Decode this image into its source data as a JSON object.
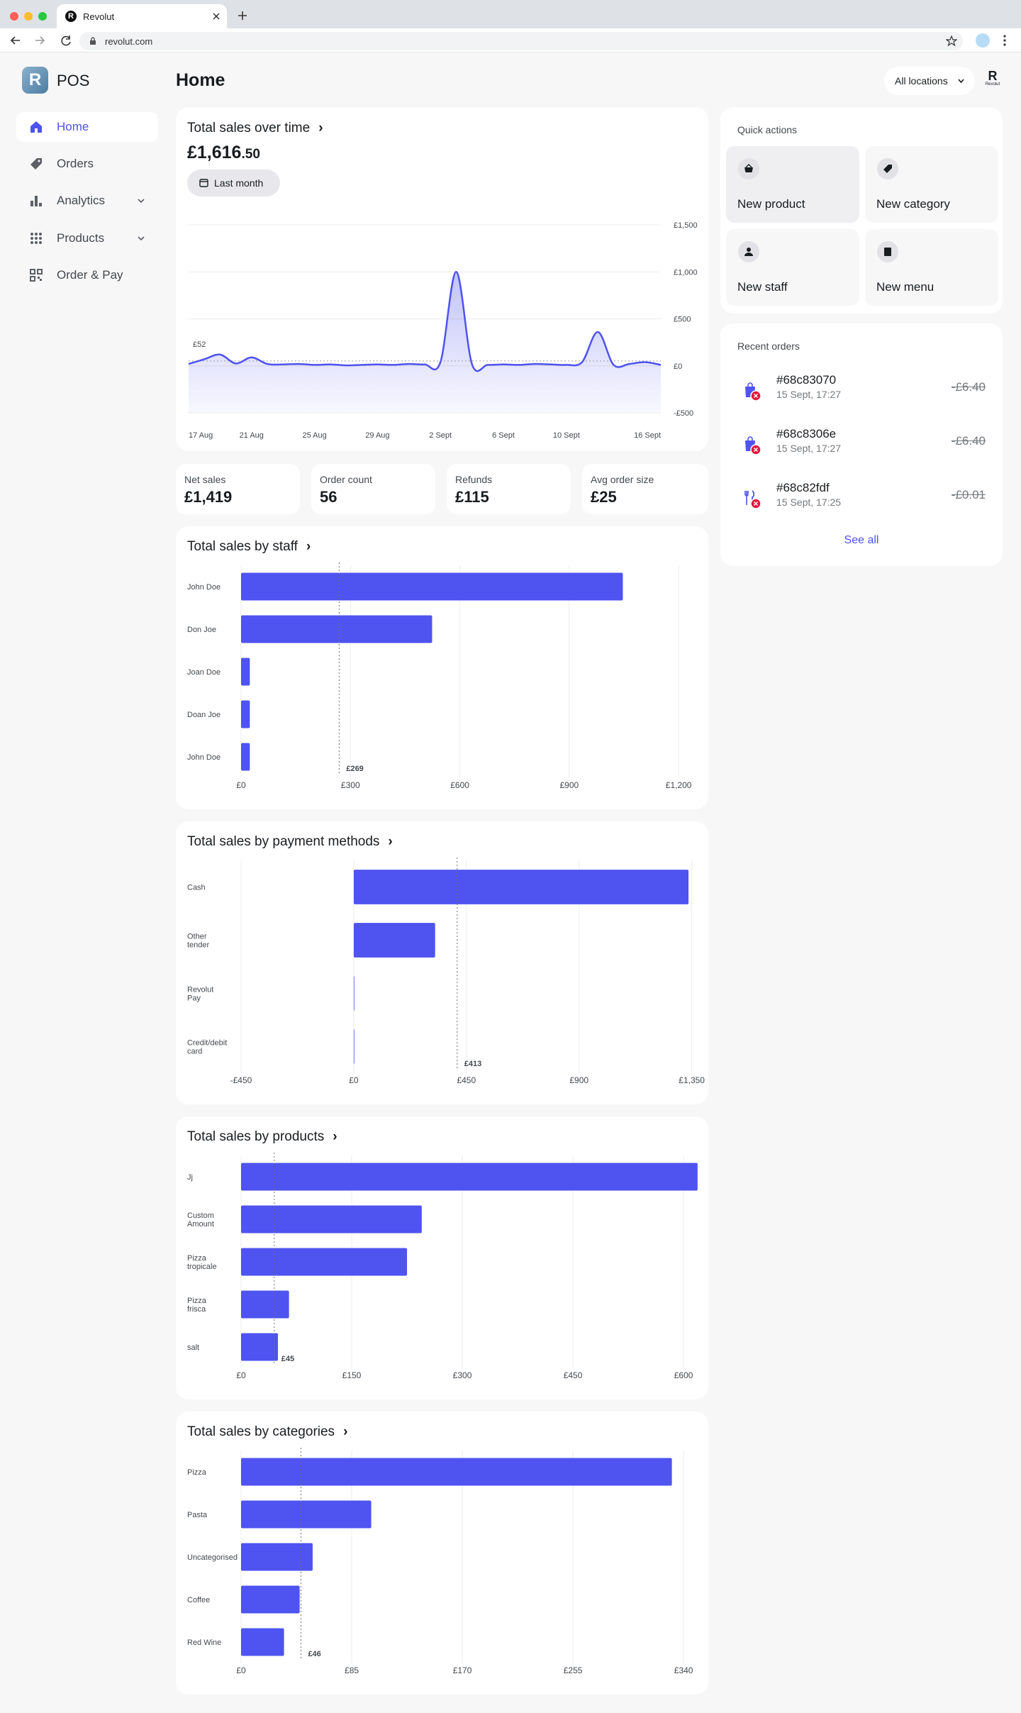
{
  "browser": {
    "tab_title": "Revolut",
    "url": "revolut.com"
  },
  "sidebar": {
    "logo": "R",
    "brand": "POS",
    "nav": [
      "Home",
      "Orders",
      "Analytics",
      "Products",
      "Order & Pay"
    ]
  },
  "header": {
    "title": "Home",
    "location_filter": "All locations",
    "logo_letter": "R",
    "logo_caption": "Revolut"
  },
  "sales_over_time": {
    "amount": "£1,616",
    "amount_decimals": ".50",
    "period": "Last month"
  },
  "stats": [
    {
      "label": "Net sales",
      "value": "£1,419"
    },
    {
      "label": "Order count",
      "value": "56"
    },
    {
      "label": "Refunds",
      "value": "£115"
    },
    {
      "label": "Avg order size",
      "value": "£25"
    }
  ],
  "quick_actions": {
    "title": "Quick actions",
    "actions": [
      "New product",
      "New category",
      "New staff",
      "New menu"
    ]
  },
  "recent_orders": {
    "title": "Recent orders",
    "orders": [
      {
        "id": "#68c83070",
        "time": "15 Sept, 17:27",
        "amount": "-£6.40"
      },
      {
        "id": "#68c8306e",
        "time": "15 Sept, 17:27",
        "amount": "-£6.40"
      },
      {
        "id": "#68c82fdf",
        "time": "15 Sept, 17:25",
        "amount": "-£0.01"
      }
    ],
    "see_all": "See all"
  },
  "chart_data": [
    {
      "type": "line",
      "title": "Total sales over time",
      "categories": [
        "17 Aug",
        null,
        null,
        null,
        "21 Aug",
        null,
        null,
        null,
        "25 Aug",
        null,
        null,
        null,
        "29 Aug",
        null,
        null,
        null,
        "2 Sept",
        null,
        null,
        null,
        "6 Sept",
        null,
        null,
        null,
        "10 Sept",
        null,
        null,
        null,
        null,
        null,
        "16 Sept"
      ],
      "values": [
        20,
        70,
        120,
        25,
        90,
        20,
        15,
        20,
        10,
        15,
        5,
        10,
        15,
        10,
        20,
        15,
        40,
        1000,
        20,
        10,
        15,
        10,
        20,
        15,
        10,
        40,
        360,
        10,
        20,
        40,
        10
      ],
      "color": "#4f53ef",
      "ylim": [
        -500,
        1500
      ],
      "yticks": [
        {
          "value": 1500,
          "label": "£1,500"
        },
        {
          "value": 1000,
          "label": "£1,000"
        },
        {
          "value": 500,
          "label": "£500"
        },
        {
          "value": 0,
          "label": "£0"
        },
        {
          "value": -500,
          "label": "-£500"
        }
      ],
      "grid": true,
      "average": {
        "value": 52,
        "label": "£52"
      }
    },
    {
      "type": "bar",
      "orientation": "horizontal",
      "title": "Total sales by staff",
      "categories": [
        "John Doe",
        "Don Joe",
        "Joan Doe",
        "Doan Joe",
        "John Doe"
      ],
      "values": [
        1047,
        524,
        24,
        24,
        24
      ],
      "color": "#4f53ef",
      "xlim": [
        0,
        1260
      ],
      "xticks": [
        {
          "value": 0,
          "label": "£0"
        },
        {
          "value": 300,
          "label": "£300"
        },
        {
          "value": 600,
          "label": "£600"
        },
        {
          "value": 900,
          "label": "£900"
        },
        {
          "value": 1200,
          "label": "£1,200"
        }
      ],
      "grid": true,
      "average": {
        "value": 269,
        "label": "£269"
      }
    },
    {
      "type": "bar",
      "orientation": "horizontal",
      "title": "Total sales by payment methods",
      "categories": [
        "Cash",
        "Other tender",
        "Revolut Pay",
        "Credit/debit card"
      ],
      "values": [
        1337,
        325,
        2,
        0
      ],
      "color": "#4f53ef",
      "xlim": [
        -450,
        1385
      ],
      "xticks": [
        {
          "value": -450,
          "label": "-£450"
        },
        {
          "value": 0,
          "label": "£0"
        },
        {
          "value": 450,
          "label": "£450"
        },
        {
          "value": 900,
          "label": "£900"
        },
        {
          "value": 1350,
          "label": "£1,350"
        }
      ],
      "grid": true,
      "average": {
        "value": 413,
        "label": "£413"
      }
    },
    {
      "type": "bar",
      "orientation": "horizontal",
      "title": "Total sales by products",
      "categories": [
        "Jj",
        "Custom Amount",
        "Pizza tropicale",
        "Pizza frisca",
        "salt"
      ],
      "values": [
        619,
        245,
        225,
        65,
        50
      ],
      "color": "#4f53ef",
      "xlim": [
        0,
        623
      ],
      "xticks": [
        {
          "value": 0,
          "label": "£0"
        },
        {
          "value": 150,
          "label": "£150"
        },
        {
          "value": 300,
          "label": "£300"
        },
        {
          "value": 450,
          "label": "£450"
        },
        {
          "value": 600,
          "label": "£600"
        }
      ],
      "grid": true,
      "average": {
        "value": 45,
        "label": "£45"
      }
    },
    {
      "type": "bar",
      "orientation": "horizontal",
      "title": "Total sales by categories",
      "categories": [
        "Pizza",
        "Pasta",
        "Uncategorised",
        "Coffee",
        "Red Wine"
      ],
      "values": [
        331,
        100,
        55,
        45,
        33
      ],
      "color": "#4f53ef",
      "xlim": [
        0,
        353
      ],
      "xticks": [
        {
          "value": 0,
          "label": "£0"
        },
        {
          "value": 85,
          "label": "£85"
        },
        {
          "value": 170,
          "label": "£170"
        },
        {
          "value": 255,
          "label": "£255"
        },
        {
          "value": 340,
          "label": "£340"
        }
      ],
      "grid": true,
      "average": {
        "value": 46,
        "label": "£46"
      }
    }
  ]
}
